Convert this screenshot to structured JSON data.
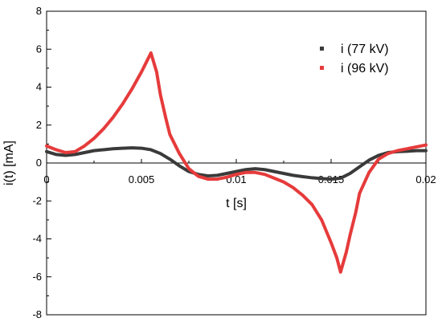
{
  "chart_data": {
    "type": "line",
    "xlabel": "t [s]",
    "ylabel": "i(t) [mA]",
    "xlim": [
      0,
      0.02
    ],
    "ylim": [
      -8,
      8
    ],
    "xticks": [
      "0",
      "0.005",
      "0.01",
      "0.015",
      "0.02"
    ],
    "yticks": [
      "-8",
      "-6",
      "-4",
      "-2",
      "0",
      "2",
      "4",
      "6",
      "8"
    ],
    "legend_position": "top-right",
    "series": [
      {
        "name": "i (77 kV)",
        "color": "#3a3a3a",
        "x": [
          0,
          0.0005,
          0.001,
          0.0015,
          0.002,
          0.0025,
          0.003,
          0.0035,
          0.004,
          0.0045,
          0.005,
          0.0055,
          0.006,
          0.0065,
          0.007,
          0.0075,
          0.008,
          0.0085,
          0.009,
          0.0095,
          0.01,
          0.0105,
          0.011,
          0.0115,
          0.012,
          0.0125,
          0.013,
          0.0135,
          0.014,
          0.0145,
          0.015,
          0.0155,
          0.016,
          0.0165,
          0.017,
          0.0175,
          0.018,
          0.0185,
          0.019,
          0.0195,
          0.02
        ],
        "y": [
          0.6,
          0.45,
          0.4,
          0.45,
          0.55,
          0.65,
          0.7,
          0.75,
          0.78,
          0.8,
          0.78,
          0.7,
          0.5,
          0.2,
          -0.15,
          -0.45,
          -0.6,
          -0.68,
          -0.65,
          -0.55,
          -0.45,
          -0.35,
          -0.3,
          -0.35,
          -0.45,
          -0.55,
          -0.65,
          -0.72,
          -0.78,
          -0.82,
          -0.85,
          -0.8,
          -0.55,
          -0.2,
          0.15,
          0.4,
          0.55,
          0.6,
          0.62,
          0.65,
          0.65
        ]
      },
      {
        "name": "i (96 kV)",
        "color": "#e63b3b",
        "x": [
          0,
          0.0005,
          0.001,
          0.0015,
          0.002,
          0.0025,
          0.003,
          0.0035,
          0.004,
          0.0045,
          0.005,
          0.0053,
          0.0055,
          0.0058,
          0.006,
          0.0063,
          0.0065,
          0.007,
          0.0075,
          0.008,
          0.0085,
          0.009,
          0.0095,
          0.01,
          0.0105,
          0.011,
          0.0115,
          0.012,
          0.0125,
          0.013,
          0.0135,
          0.014,
          0.0145,
          0.015,
          0.0153,
          0.0155,
          0.0158,
          0.016,
          0.0163,
          0.0165,
          0.017,
          0.0175,
          0.018,
          0.0185,
          0.019,
          0.0195,
          0.02
        ],
        "y": [
          0.9,
          0.7,
          0.55,
          0.6,
          0.9,
          1.3,
          1.8,
          2.4,
          3.1,
          3.9,
          4.8,
          5.4,
          5.8,
          4.8,
          3.6,
          2.3,
          1.5,
          0.5,
          -0.3,
          -0.7,
          -0.85,
          -0.85,
          -0.75,
          -0.6,
          -0.5,
          -0.5,
          -0.6,
          -0.8,
          -1.0,
          -1.3,
          -1.7,
          -2.2,
          -3.0,
          -4.2,
          -5.0,
          -5.75,
          -4.7,
          -3.8,
          -2.6,
          -1.6,
          -0.5,
          0.2,
          0.5,
          0.65,
          0.75,
          0.85,
          0.95
        ]
      }
    ]
  }
}
